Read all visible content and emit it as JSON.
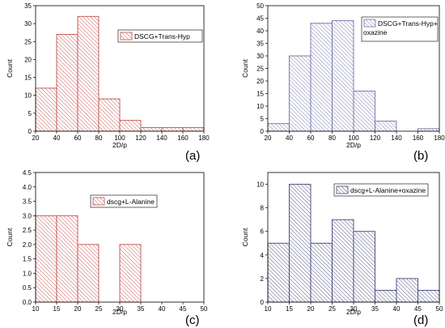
{
  "chart_data": [
    {
      "type": "bar",
      "panel_label": "(a)",
      "legend": "DSCG+Trans-Hyp",
      "color": "#c0504d",
      "xlabel": "2D/p",
      "ylabel": "Count",
      "bins": [
        [
          20,
          40
        ],
        [
          40,
          60
        ],
        [
          60,
          80
        ],
        [
          80,
          100
        ],
        [
          100,
          120
        ],
        [
          120,
          140
        ],
        [
          140,
          160
        ],
        [
          160,
          180
        ]
      ],
      "values": [
        12,
        27,
        32,
        9,
        3,
        1,
        1,
        1
      ],
      "xlim": [
        20,
        180
      ],
      "ylim": [
        0,
        35
      ],
      "xticks": [
        "20",
        "40",
        "60",
        "80",
        "100",
        "120",
        "140",
        "160",
        "180"
      ],
      "yticks": [
        "0",
        "5",
        "10",
        "15",
        "20",
        "25",
        "30",
        "35"
      ],
      "legend_position": "top-right",
      "grid": false
    },
    {
      "type": "bar",
      "panel_label": "(b)",
      "legend": "DSCG+Trans-Hyp+ oxazine",
      "color": "#7070a8",
      "xlabel": "2D/p",
      "ylabel": "Count",
      "bins": [
        [
          20,
          40
        ],
        [
          40,
          60
        ],
        [
          60,
          80
        ],
        [
          80,
          100
        ],
        [
          100,
          120
        ],
        [
          120,
          140
        ],
        [
          140,
          160
        ],
        [
          160,
          180
        ]
      ],
      "values": [
        3,
        30,
        43,
        44,
        16,
        4,
        0,
        1
      ],
      "xlim": [
        20,
        180
      ],
      "ylim": [
        0,
        50
      ],
      "xticks": [
        "20",
        "40",
        "60",
        "80",
        "100",
        "120",
        "140",
        "160",
        "180"
      ],
      "yticks": [
        "0",
        "5",
        "10",
        "15",
        "20",
        "25",
        "30",
        "35",
        "40",
        "45",
        "50"
      ],
      "legend_position": "top-right",
      "grid": false
    },
    {
      "type": "bar",
      "panel_label": "(c)",
      "legend": "dscg+L-Alanine",
      "color": "#c0504d",
      "xlabel": "2D/p",
      "ylabel": "Count",
      "bins": [
        [
          10,
          15
        ],
        [
          15,
          20
        ],
        [
          20,
          25
        ],
        [
          25,
          30
        ],
        [
          30,
          35
        ]
      ],
      "values": [
        3,
        3,
        2,
        0,
        2
      ],
      "xlim": [
        10,
        50
      ],
      "ylim": [
        0,
        4.5
      ],
      "xticks": [
        "10",
        "15",
        "20",
        "25",
        "30",
        "35",
        "40",
        "45",
        "50"
      ],
      "yticks": [
        "0.0",
        "0.5",
        "1.0",
        "1.5",
        "2.0",
        "2.5",
        "3.0",
        "3.5",
        "4.0",
        "4.5"
      ],
      "legend_position": "top-center",
      "grid": false
    },
    {
      "type": "bar",
      "panel_label": "(d)",
      "legend": "dscg+L-Alanine+oxazine",
      "color": "#44447a",
      "xlabel": "2D/p",
      "ylabel": "Count",
      "bins": [
        [
          10,
          15
        ],
        [
          15,
          20
        ],
        [
          20,
          25
        ],
        [
          25,
          30
        ],
        [
          30,
          35
        ],
        [
          35,
          40
        ],
        [
          40,
          45
        ],
        [
          45,
          50
        ]
      ],
      "values": [
        5,
        10,
        5,
        7,
        6,
        1,
        2,
        1
      ],
      "xlim": [
        10,
        50
      ],
      "ylim": [
        0,
        11
      ],
      "xticks": [
        "10",
        "15",
        "20",
        "25",
        "30",
        "35",
        "40",
        "45",
        "50"
      ],
      "yticks": [
        "0",
        "2",
        "4",
        "6",
        "8",
        "10"
      ],
      "legend_position": "top-right",
      "grid": false
    }
  ]
}
